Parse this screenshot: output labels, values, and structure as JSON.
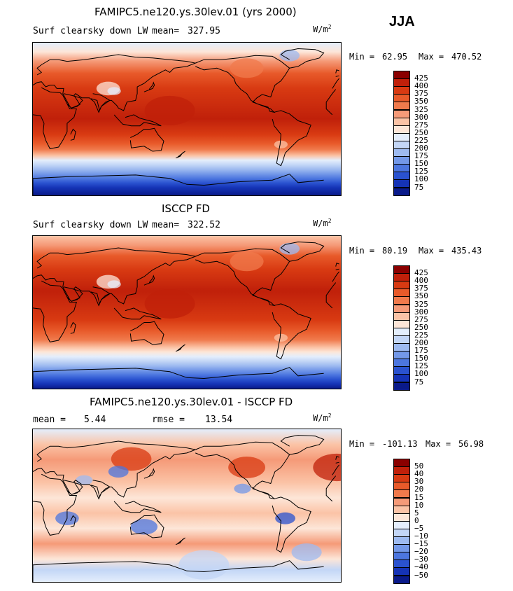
{
  "season": "JJA",
  "panels": [
    {
      "id": "model",
      "title": "FAMIPC5.ne120.ys.30lev.01 (yrs 2000)",
      "variable": "Surf clearsky down LW",
      "mean_label": "mean=",
      "mean_value": "327.95",
      "units": "W/m",
      "units_exp": "2",
      "min_label": "Min =",
      "min_value": "62.95",
      "max_label": "Max =",
      "max_value": "470.52",
      "colorbar": {
        "labels": [
          "425",
          "400",
          "375",
          "350",
          "325",
          "300",
          "275",
          "250",
          "225",
          "200",
          "175",
          "150",
          "125",
          "100",
          "75"
        ],
        "colors": [
          "#8a0000",
          "#c0200a",
          "#d83a12",
          "#e85a2a",
          "#f07a4c",
          "#f59a78",
          "#fbc3a6",
          "#fde6d8",
          "#e4eefc",
          "#c3d6f6",
          "#9dbaf0",
          "#7398e8",
          "#4c76df",
          "#2a52cf",
          "#1533b6",
          "#0a1a8a"
        ]
      },
      "map_kind": "abs"
    },
    {
      "id": "obs",
      "title": "ISCCP FD",
      "variable": "Surf clearsky down LW",
      "mean_label": "mean=",
      "mean_value": "322.52",
      "units": "W/m",
      "units_exp": "2",
      "min_label": "Min =",
      "min_value": "80.19",
      "max_label": "Max =",
      "max_value": "435.43",
      "colorbar": {
        "labels": [
          "425",
          "400",
          "375",
          "350",
          "325",
          "300",
          "275",
          "250",
          "225",
          "200",
          "175",
          "150",
          "125",
          "100",
          "75"
        ],
        "colors": [
          "#8a0000",
          "#c0200a",
          "#d83a12",
          "#e85a2a",
          "#f07a4c",
          "#f59a78",
          "#fbc3a6",
          "#fde6d8",
          "#e4eefc",
          "#c3d6f6",
          "#9dbaf0",
          "#7398e8",
          "#4c76df",
          "#2a52cf",
          "#1533b6",
          "#0a1a8a"
        ]
      },
      "map_kind": "abs2"
    },
    {
      "id": "diff",
      "title": "FAMIPC5.ne120.ys.30lev.01 - ISCCP FD",
      "variable": "",
      "mean_label": "mean =",
      "mean_value": "5.44",
      "rmse_label": "rmse =",
      "rmse_value": "13.54",
      "units": "W/m",
      "units_exp": "2",
      "min_label": "Min =",
      "min_value": "-101.13",
      "max_label": "Max =",
      "max_value": "56.98",
      "colorbar": {
        "labels": [
          "50",
          "40",
          "30",
          "20",
          "15",
          "10",
          "5",
          "0",
          "−5",
          "−10",
          "−15",
          "−20",
          "−30",
          "−40",
          "−50"
        ],
        "colors": [
          "#8a0000",
          "#c0200a",
          "#d83a12",
          "#e85a2a",
          "#f07a4c",
          "#f59a78",
          "#fbc3a6",
          "#fde6d8",
          "#e4eefc",
          "#c3d6f6",
          "#9dbaf0",
          "#7398e8",
          "#4c76df",
          "#2a52cf",
          "#1533b6",
          "#0a1a8a"
        ]
      },
      "map_kind": "diff"
    }
  ]
}
